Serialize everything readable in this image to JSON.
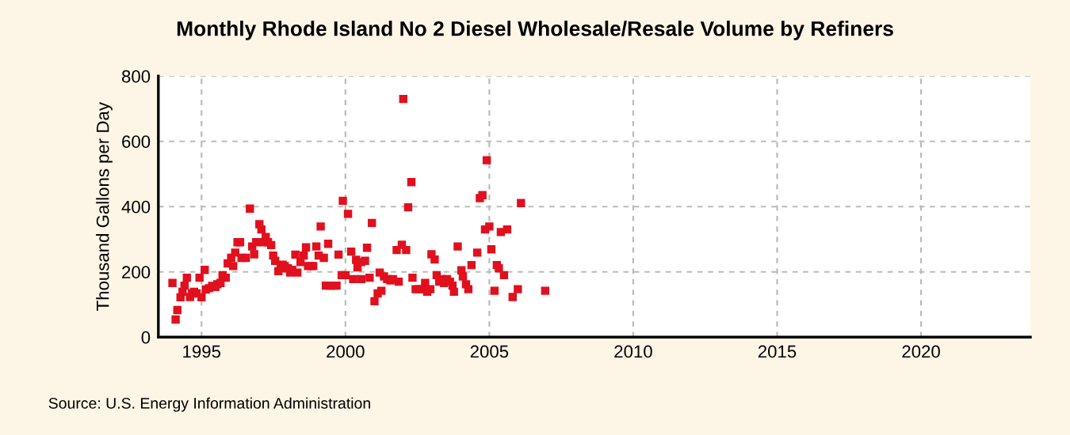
{
  "chart_data": {
    "type": "scatter",
    "title": "Monthly Rhode Island No 2 Diesel Wholesale/Resale Volume by Refiners",
    "ylabel": "Thousand Gallons per Day",
    "annotations": [
      "Source: U.S. Energy Information Administration"
    ],
    "xlim": [
      1993.5,
      2023.8
    ],
    "xticks": [
      1995,
      2000,
      2005,
      2010,
      2015,
      2020
    ],
    "ylim": [
      0,
      800
    ],
    "yticks": [
      0,
      200,
      400,
      600,
      800
    ],
    "grid": true,
    "marker": "square",
    "series": [
      {
        "color": "#e0101e",
        "x": [
          1993.99,
          1994.1,
          1994.16,
          1994.27,
          1994.34,
          1994.41,
          1994.49,
          1994.6,
          1994.67,
          1994.74,
          1994.82,
          1994.93,
          1995.0,
          1995.11,
          1995.15,
          1995.26,
          1995.37,
          1995.48,
          1995.55,
          1995.66,
          1995.73,
          1995.84,
          1995.91,
          1996.03,
          1996.1,
          1996.17,
          1996.25,
          1996.34,
          1996.39,
          1996.54,
          1996.68,
          1996.76,
          1996.83,
          1996.9,
          1997.01,
          1997.08,
          1997.16,
          1997.23,
          1997.31,
          1997.42,
          1997.49,
          1997.56,
          1997.67,
          1997.75,
          1997.82,
          1997.89,
          1998.0,
          1998.08,
          1998.15,
          1998.26,
          1998.33,
          1998.44,
          1998.55,
          1998.63,
          1998.7,
          1998.81,
          1998.88,
          1998.99,
          1999.07,
          1999.14,
          1999.25,
          1999.32,
          1999.4,
          1999.47,
          1999.58,
          1999.69,
          1999.76,
          1999.87,
          1999.91,
          2000.0,
          2000.09,
          2000.2,
          2000.27,
          2000.37,
          2000.42,
          2000.55,
          2000.55,
          2000.68,
          2000.75,
          2000.84,
          2000.92,
          2001.01,
          2001.12,
          2001.19,
          2001.25,
          2001.34,
          2001.45,
          2001.56,
          2001.65,
          2001.78,
          2001.85,
          2001.96,
          2002.01,
          2002.11,
          2002.18,
          2002.29,
          2002.33,
          2002.44,
          2002.56,
          2002.69,
          2002.77,
          2002.84,
          2002.95,
          2002.99,
          2003.1,
          2003.17,
          2003.26,
          2003.35,
          2003.42,
          2003.53,
          2003.63,
          2003.72,
          2003.77,
          2003.9,
          2004.03,
          2004.08,
          2004.19,
          2004.27,
          2004.38,
          2004.58,
          2004.67,
          2004.76,
          2004.85,
          2004.91,
          2005.0,
          2005.07,
          2005.18,
          2005.26,
          2005.33,
          2005.4,
          2005.51,
          2005.62,
          2005.81,
          2005.99,
          2006.1,
          2006.94
        ],
        "values": [
          166,
          54,
          83,
          122,
          139,
          158,
          182,
          123,
          134,
          139,
          134,
          182,
          122,
          206,
          146,
          150,
          157,
          154,
          162,
          166,
          190,
          182,
          226,
          243,
          218,
          259,
          291,
          291,
          243,
          243,
          394,
          278,
          254,
          291,
          346,
          330,
          291,
          307,
          291,
          282,
          250,
          234,
          202,
          211,
          222,
          218,
          211,
          198,
          206,
          253,
          198,
          230,
          250,
          275,
          218,
          218,
          218,
          278,
          250,
          339,
          243,
          158,
          286,
          158,
          158,
          158,
          253,
          190,
          418,
          190,
          378,
          262,
          178,
          237,
          214,
          230,
          178,
          234,
          274,
          182,
          350,
          110,
          134,
          198,
          142,
          186,
          178,
          174,
          178,
          267,
          170,
          283,
          730,
          267,
          398,
          475,
          182,
          147,
          147,
          147,
          166,
          139,
          147,
          254,
          238,
          190,
          170,
          178,
          166,
          178,
          170,
          158,
          139,
          278,
          205,
          186,
          162,
          147,
          221,
          259,
          426,
          435,
          330,
          542,
          339,
          269,
          142,
          221,
          211,
          322,
          190,
          330,
          123,
          147,
          411,
          142
        ]
      }
    ]
  }
}
